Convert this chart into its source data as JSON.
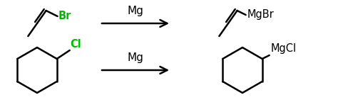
{
  "background_color": "#ffffff",
  "bond_color": "#000000",
  "halogen_color": "#00bb00",
  "reagent_color": "#000000",
  "mg_label": "Mg",
  "reaction1_reagent": "MgCl",
  "reaction2_reagent": "MgBr",
  "halogen1": "Cl",
  "halogen2": "Br",
  "figsize": [
    4.74,
    1.51
  ],
  "dpi": 100,
  "lw": 1.8,
  "fontsize_mg": 11,
  "fontsize_label": 10.5
}
